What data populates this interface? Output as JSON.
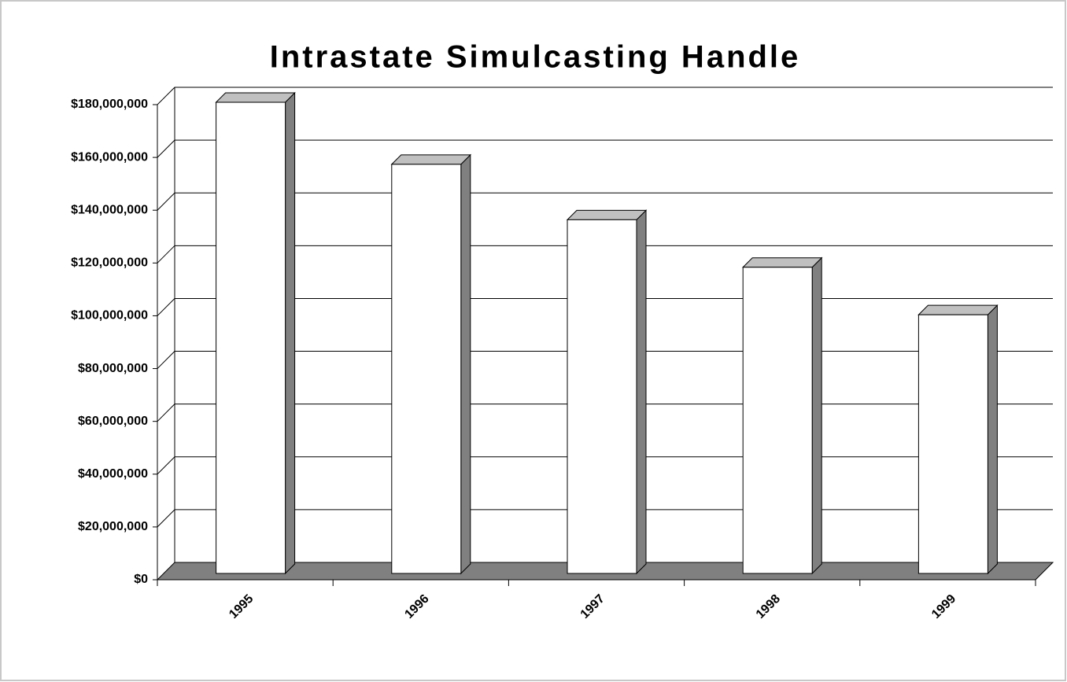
{
  "chart_data": {
    "type": "bar",
    "title": "Intrastate Simulcasting Handle",
    "categories": [
      "1995",
      "1996",
      "1997",
      "1998",
      "1999"
    ],
    "values": [
      178500000,
      155000000,
      134000000,
      116000000,
      98000000
    ],
    "color": "#ffffff",
    "ylim": [
      0,
      180000000
    ],
    "yticks": [
      {
        "value": 0,
        "label": "$0"
      },
      {
        "value": 20000000,
        "label": "$20,000,000"
      },
      {
        "value": 40000000,
        "label": "$40,000,000"
      },
      {
        "value": 60000000,
        "label": "$60,000,000"
      },
      {
        "value": 80000000,
        "label": "$80,000,000"
      },
      {
        "value": 100000000,
        "label": "$100,000,000"
      },
      {
        "value": 120000000,
        "label": "$120,000,000"
      },
      {
        "value": 140000000,
        "label": "$140,000,000"
      },
      {
        "value": 160000000,
        "label": "$160,000,000"
      },
      {
        "value": 180000000,
        "label": "$180,000,000"
      }
    ],
    "grid": true
  }
}
